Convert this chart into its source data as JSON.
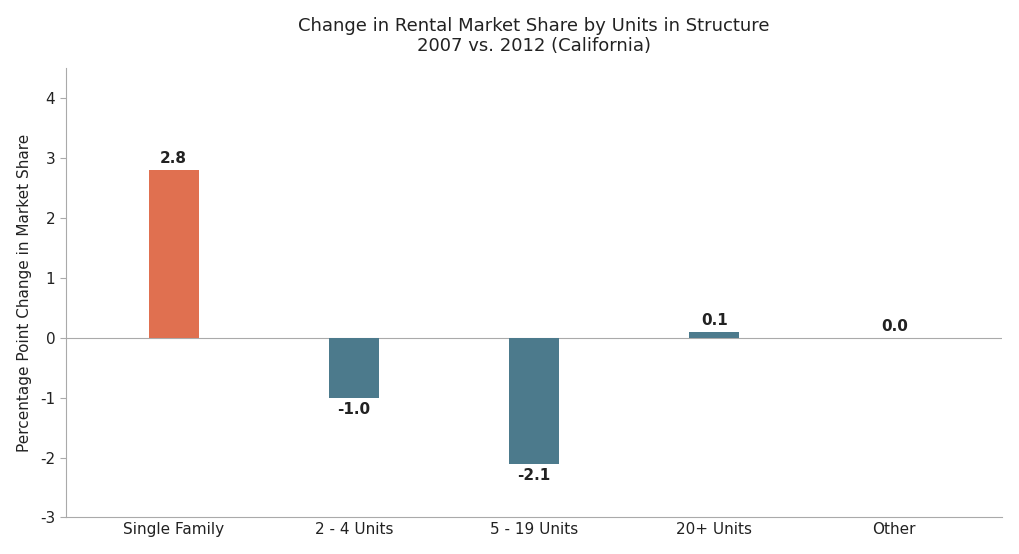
{
  "title_line1": "Change in Rental Market Share by Units in Structure",
  "title_line2": "2007 vs. 2012 (California)",
  "categories": [
    "Single Family",
    "2 - 4 Units",
    "5 - 19 Units",
    "20+ Units",
    "Other"
  ],
  "values": [
    2.8,
    -1.0,
    -2.1,
    0.1,
    0.0
  ],
  "bar_colors": [
    "#E07050",
    "#4C7A8C",
    "#4C7A8C",
    "#4C7A8C",
    "#4C7A8C"
  ],
  "ylabel": "Percentage Point Change in Market Share",
  "ylim": [
    -3,
    4.5
  ],
  "yticks": [
    -3,
    -2,
    -1,
    0,
    1,
    2,
    3,
    4
  ],
  "background_color": "#ffffff",
  "title_fontsize": 13,
  "label_fontsize": 11,
  "tick_fontsize": 11,
  "bar_width": 0.28
}
